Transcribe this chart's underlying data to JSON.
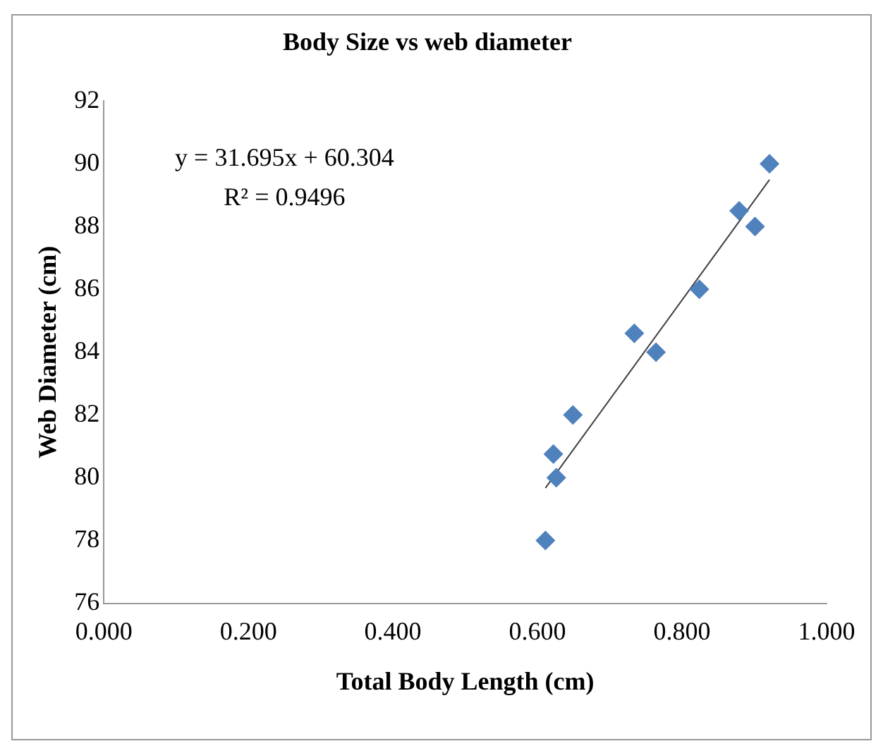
{
  "chart_data": {
    "type": "scatter",
    "title": "Body Size vs web diameter",
    "xlabel": "Total Body Length (cm)",
    "ylabel": "Web Diameter (cm)",
    "series": [
      {
        "color": "#4f81bd",
        "x": [
          0.611,
          0.622,
          0.626,
          0.649,
          0.734,
          0.764,
          0.824,
          0.879,
          0.901,
          0.921
        ],
        "values": [
          78,
          80.75,
          80,
          82,
          84.6,
          84,
          86,
          88.5,
          88,
          90
        ]
      },
      {
        "type": "line",
        "marker": "none",
        "color": "#404040",
        "x": [
          0.611,
          0.921
        ],
        "values": [
          79.67,
          89.49
        ]
      }
    ],
    "xlim": [
      0,
      1
    ],
    "ylim": [
      76,
      92
    ],
    "xticks": [
      {
        "value": 0,
        "label": "0.000"
      },
      {
        "value": 0.2,
        "label": "0.200"
      },
      {
        "value": 0.4,
        "label": "0.400"
      },
      {
        "value": 0.6,
        "label": "0.600"
      },
      {
        "value": 0.8,
        "label": "0.800"
      },
      {
        "value": 1,
        "label": "1.000"
      }
    ],
    "yticks": [
      76,
      78,
      80,
      82,
      84,
      86,
      88,
      90,
      92
    ],
    "annotations": [
      "y = 31.695x + 60.304",
      "R² = 0.9496"
    ],
    "grid": false,
    "legend": false,
    "marker": "diamond"
  }
}
